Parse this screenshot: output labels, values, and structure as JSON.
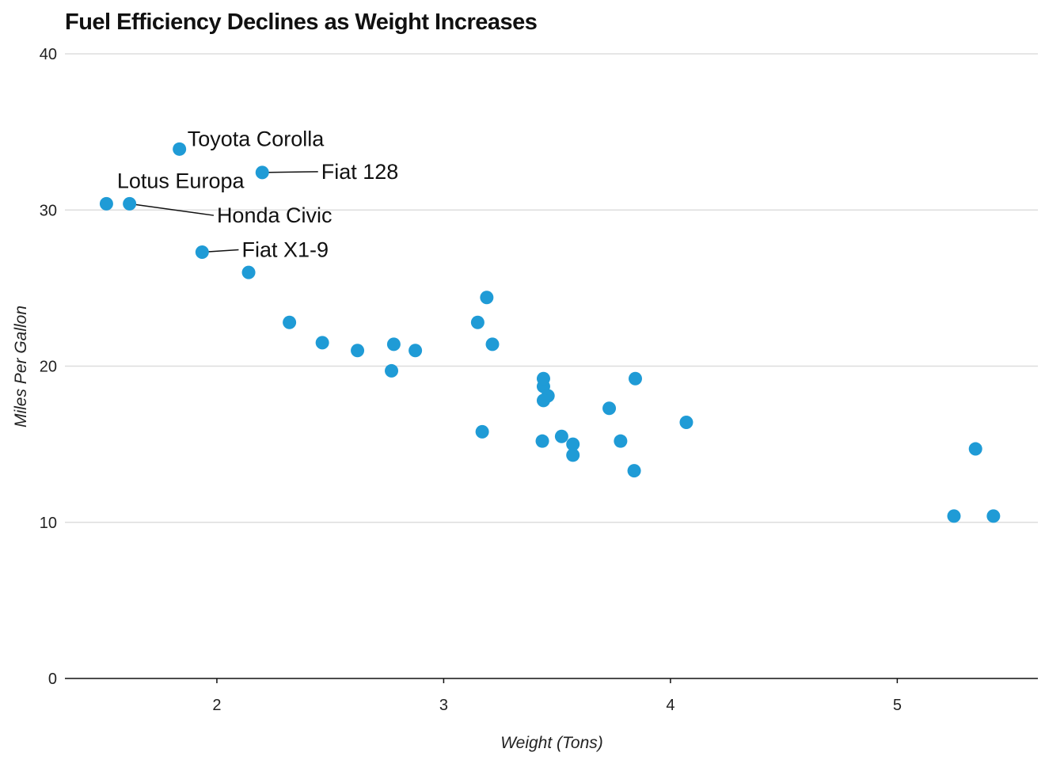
{
  "chart_data": {
    "type": "scatter",
    "title": "Fuel Efficiency Declines as Weight Increases",
    "xlabel": "Weight (Tons)",
    "ylabel": "Miles Per Gallon",
    "xlim": [
      1.33,
      5.62
    ],
    "ylim": [
      0,
      40
    ],
    "x_ticks": [
      2,
      3,
      4,
      5
    ],
    "y_ticks": [
      0,
      10,
      20,
      30,
      40
    ],
    "grid": "horizontal",
    "point_color": "#1f9bd6",
    "points": [
      {
        "x": 2.62,
        "y": 21.0
      },
      {
        "x": 2.875,
        "y": 21.0
      },
      {
        "x": 2.32,
        "y": 22.8
      },
      {
        "x": 3.215,
        "y": 21.4
      },
      {
        "x": 3.44,
        "y": 18.7
      },
      {
        "x": 3.46,
        "y": 18.1
      },
      {
        "x": 3.57,
        "y": 14.3
      },
      {
        "x": 3.19,
        "y": 24.4
      },
      {
        "x": 3.15,
        "y": 22.8
      },
      {
        "x": 3.44,
        "y": 19.2
      },
      {
        "x": 3.44,
        "y": 17.8
      },
      {
        "x": 4.07,
        "y": 16.4
      },
      {
        "x": 3.73,
        "y": 17.3
      },
      {
        "x": 3.78,
        "y": 15.2
      },
      {
        "x": 5.25,
        "y": 10.4
      },
      {
        "x": 5.424,
        "y": 10.4
      },
      {
        "x": 5.345,
        "y": 14.7
      },
      {
        "x": 2.2,
        "y": 32.4
      },
      {
        "x": 1.615,
        "y": 30.4
      },
      {
        "x": 1.835,
        "y": 33.9
      },
      {
        "x": 2.465,
        "y": 21.5
      },
      {
        "x": 3.52,
        "y": 15.5
      },
      {
        "x": 3.435,
        "y": 15.2
      },
      {
        "x": 3.84,
        "y": 13.3
      },
      {
        "x": 3.845,
        "y": 19.2
      },
      {
        "x": 1.935,
        "y": 27.3
      },
      {
        "x": 2.14,
        "y": 26.0
      },
      {
        "x": 1.513,
        "y": 30.4
      },
      {
        "x": 3.17,
        "y": 15.8
      },
      {
        "x": 2.77,
        "y": 19.7
      },
      {
        "x": 3.57,
        "y": 15.0
      },
      {
        "x": 2.78,
        "y": 21.4
      }
    ],
    "annotations": [
      {
        "label": "Toyota Corolla",
        "x": 1.835,
        "y": 33.9,
        "tx": 1.87,
        "ty": 34.2,
        "leader": false
      },
      {
        "label": "Fiat 128",
        "x": 2.2,
        "y": 32.4,
        "tx": 2.46,
        "ty": 32.1,
        "leader": true
      },
      {
        "label": "Lotus Europa",
        "x": 1.513,
        "y": 30.4,
        "tx": 1.56,
        "ty": 31.5,
        "leader": false
      },
      {
        "label": "Honda Civic",
        "x": 1.615,
        "y": 30.4,
        "tx": 2.0,
        "ty": 29.3,
        "leader": true
      },
      {
        "label": "Fiat X1-9",
        "x": 1.935,
        "y": 27.3,
        "tx": 2.11,
        "ty": 27.1,
        "leader": true
      }
    ]
  }
}
